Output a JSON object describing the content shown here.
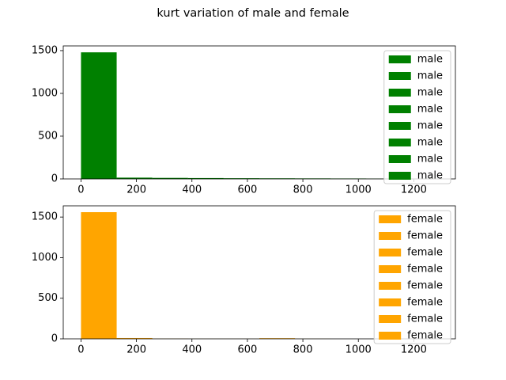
{
  "title": "kurt variation of male and female",
  "chart_data": [
    {
      "type": "histogram",
      "color": "#008000",
      "bins": [
        0,
        128.6,
        257.2,
        385.8,
        514.4,
        643,
        771.6,
        900.2,
        1028.8,
        1157.4,
        1286
      ],
      "values": [
        1480,
        15,
        12,
        10,
        8,
        7,
        6,
        5,
        3,
        2
      ],
      "xlim": [
        -64,
        1350
      ],
      "ylim": [
        0,
        1555
      ],
      "xticks": [
        0,
        200,
        400,
        600,
        800,
        1000,
        1200
      ],
      "yticks": [
        0,
        500,
        1000,
        1500
      ],
      "legend": [
        "male",
        "male",
        "male",
        "male",
        "male",
        "male",
        "male",
        "male"
      ],
      "legend_position": "upper right"
    },
    {
      "type": "histogram",
      "color": "#ffa500",
      "bins": [
        0,
        128.6,
        257.2,
        385.8,
        514.4,
        643,
        771.6,
        900.2,
        1028.8,
        1157.4,
        1286
      ],
      "values": [
        1560,
        10,
        2,
        1,
        1,
        8,
        1,
        0,
        0,
        1
      ],
      "xlim": [
        -64,
        1350
      ],
      "ylim": [
        0,
        1638
      ],
      "xticks": [
        0,
        200,
        400,
        600,
        800,
        1000,
        1200
      ],
      "yticks": [
        0,
        500,
        1000,
        1500
      ],
      "legend": [
        "female",
        "female",
        "female",
        "female",
        "female",
        "female",
        "female",
        "female"
      ],
      "legend_position": "upper right"
    }
  ]
}
